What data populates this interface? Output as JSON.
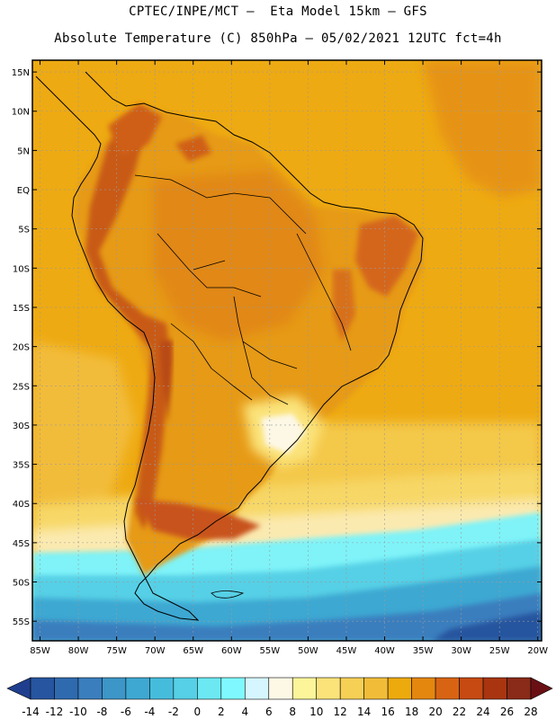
{
  "header": {
    "title_line1": "CPTEC/INPE/MCT –  Eta Model 15km – GFS",
    "title_line2": "Absolute Temperature (C) 850hPa – 05/02/2021 12UTC fct=4h"
  },
  "map": {
    "lat_labels": [
      "15N",
      "10N",
      "5N",
      "EQ",
      "5S",
      "10S",
      "15S",
      "20S",
      "25S",
      "30S",
      "35S",
      "40S",
      "45S",
      "50S",
      "55S"
    ],
    "lon_labels": [
      "85W",
      "80W",
      "75W",
      "70W",
      "65W",
      "60W",
      "55W",
      "50W",
      "45W",
      "40W",
      "35W",
      "30W",
      "25W",
      "20W"
    ],
    "lat_range": [
      -57.5,
      16.5
    ],
    "lon_range": [
      -86,
      -19.5
    ]
  },
  "colorbar": {
    "labels": [
      "-14",
      "-12",
      "-10",
      "-8",
      "-6",
      "-4",
      "-2",
      "0",
      "2",
      "4",
      "6",
      "8",
      "10",
      "12",
      "14",
      "16",
      "18",
      "20",
      "22",
      "24",
      "26",
      "28"
    ],
    "colors": [
      "#1f3f8e",
      "#27559f",
      "#2f6aaf",
      "#3a7ebe",
      "#3c96c8",
      "#3ea8d2",
      "#46bcdc",
      "#56d0e6",
      "#6ce8f2",
      "#7ff9ff",
      "#d6f6ff",
      "#fdf8e6",
      "#fdf59a",
      "#fbe37a",
      "#f6cf55",
      "#f1bd38",
      "#edaa0d",
      "#e4870f",
      "#d86413",
      "#c64a12",
      "#a83510",
      "#8a2a18",
      "#6a1014"
    ]
  }
}
